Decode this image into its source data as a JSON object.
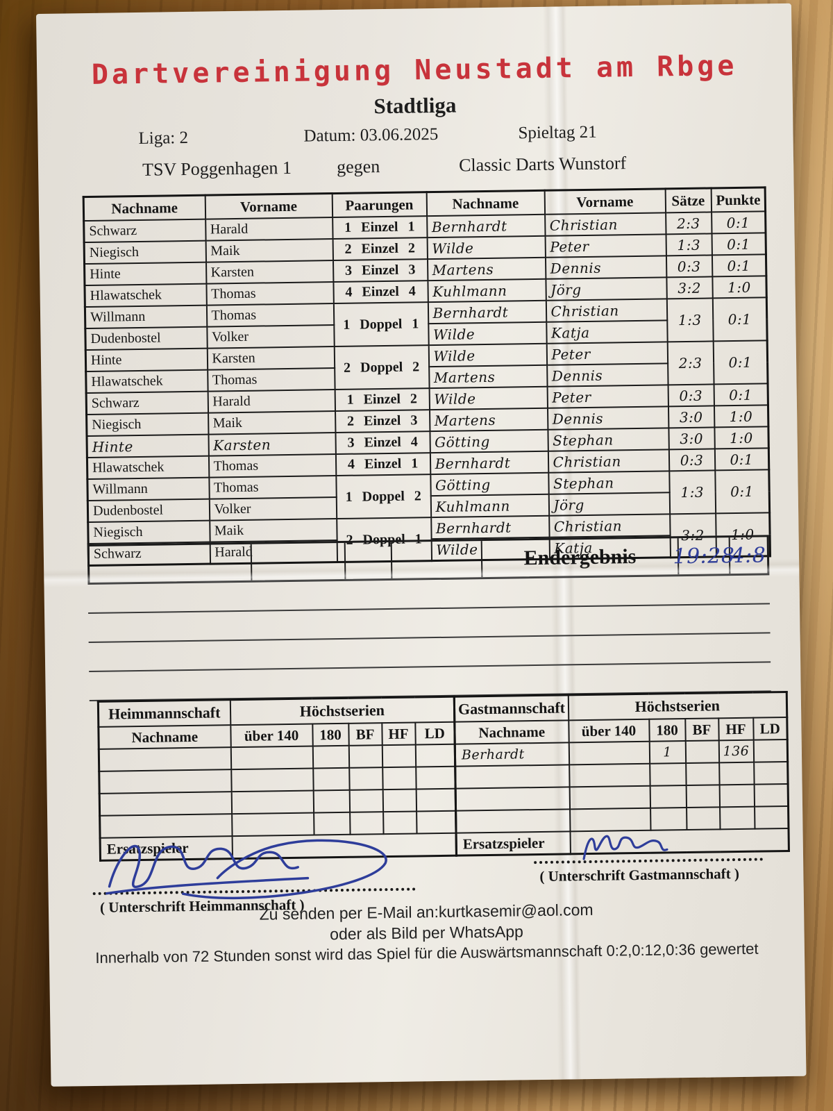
{
  "colors": {
    "title_red": "#c8333b",
    "ink_blue": "#2e3d9a",
    "paper": "#eae6de",
    "wood_brown": "#a87a45"
  },
  "header": {
    "title": "Dartvereinigung Neustadt am Rbge",
    "subtitle": "Stadtliga",
    "liga": "Liga: 2",
    "datum": "Datum: 03.06.2025",
    "spieltag": "Spieltag 21",
    "home_team": "TSV Poggenhagen 1",
    "versus": "gegen",
    "guest_team": "Classic Darts Wunstorf"
  },
  "match": {
    "headers": [
      "Nachname",
      "Vorname",
      "Paarungen",
      "Nachname",
      "Vorname",
      "Sätze",
      "Punkte"
    ],
    "rows": [
      {
        "home_last": "Schwarz",
        "home_first": "Harald",
        "pairing": "1 Einzel 1",
        "guest_last": "Bernhardt",
        "guest_first": "Christian",
        "saetze": "2:3",
        "punkte": "0:1",
        "group": "single",
        "hw_home": false
      },
      {
        "home_last": "Niegisch",
        "home_first": "Maik",
        "pairing": "2 Einzel 2",
        "guest_last": "Wilde",
        "guest_first": "Peter",
        "saetze": "1:3",
        "punkte": "0:1",
        "group": "single",
        "hw_home": false
      },
      {
        "home_last": "Hinte",
        "home_first": "Karsten",
        "pairing": "3 Einzel 3",
        "guest_last": "Martens",
        "guest_first": "Dennis",
        "saetze": "0:3",
        "punkte": "0:1",
        "group": "single",
        "hw_home": false
      },
      {
        "home_last": "Hlawatschek",
        "home_first": "Thomas",
        "pairing": "4 Einzel 4",
        "guest_last": "Kuhlmann",
        "guest_first": "Jörg",
        "saetze": "3:2",
        "punkte": "1:0",
        "group": "single",
        "hw_home": false
      },
      {
        "home_last": "Willmann",
        "home_first": "Thomas",
        "pairing": "1 Doppel 1",
        "guest_last": "Bernhardt",
        "guest_first": "Christian",
        "saetze": "1:3",
        "punkte": "0:1",
        "group": "start2",
        "hw_home": false
      },
      {
        "home_last": "Dudenbostel",
        "home_first": "Volker",
        "pairing": null,
        "guest_last": "Wilde",
        "guest_first": "Katja",
        "saetze": null,
        "punkte": null,
        "group": "cont",
        "hw_home": false
      },
      {
        "home_last": "Hinte",
        "home_first": "Karsten",
        "pairing": "2 Doppel 2",
        "guest_last": "Wilde",
        "guest_first": "Peter",
        "saetze": "2:3",
        "punkte": "0:1",
        "group": "start2",
        "hw_home": false
      },
      {
        "home_last": "Hlawatschek",
        "home_first": "Thomas",
        "pairing": null,
        "guest_last": "Martens",
        "guest_first": "Dennis",
        "saetze": null,
        "punkte": null,
        "group": "cont",
        "hw_home": false
      },
      {
        "home_last": "Schwarz",
        "home_first": "Harald",
        "pairing": "1 Einzel 2",
        "guest_last": "Wilde",
        "guest_first": "Peter",
        "saetze": "0:3",
        "punkte": "0:1",
        "group": "single",
        "hw_home": false
      },
      {
        "home_last": "Niegisch",
        "home_first": "Maik",
        "pairing": "2 Einzel 3",
        "guest_last": "Martens",
        "guest_first": "Dennis",
        "saetze": "3:0",
        "punkte": "1:0",
        "group": "single",
        "hw_home": false
      },
      {
        "home_last": "Hinte",
        "home_first": "Karsten",
        "pairing": "3 Einzel 4",
        "guest_last": "Götting",
        "guest_first": "Stephan",
        "saetze": "3:0",
        "punkte": "1:0",
        "group": "single",
        "hw_home": true
      },
      {
        "home_last": "Hlawatschek",
        "home_first": "Thomas",
        "pairing": "4 Einzel 1",
        "guest_last": "Bernhardt",
        "guest_first": "Christian",
        "saetze": "0:3",
        "punkte": "0:1",
        "group": "single",
        "hw_home": false
      },
      {
        "home_last": "Willmann",
        "home_first": "Thomas",
        "pairing": "1 Doppel 2",
        "guest_last": "Götting",
        "guest_first": "Stephan",
        "saetze": "1:3",
        "punkte": "0:1",
        "group": "start2",
        "hw_home": false
      },
      {
        "home_last": "Dudenbostel",
        "home_first": "Volker",
        "pairing": null,
        "guest_last": "Kuhlmann",
        "guest_first": "Jörg",
        "saetze": null,
        "punkte": null,
        "group": "cont",
        "hw_home": false
      },
      {
        "home_last": "Niegisch",
        "home_first": "Maik",
        "pairing": "2 Doppel 1",
        "guest_last": "Bernhardt",
        "guest_first": "Christian",
        "saetze": "3:2",
        "punkte": "1:0",
        "group": "start2",
        "hw_home": false
      },
      {
        "home_last": "Schwarz",
        "home_first": "Harald",
        "pairing": null,
        "guest_last": "Wilde",
        "guest_first": "Katja",
        "saetze": null,
        "punkte": null,
        "group": "cont",
        "hw_home": false
      }
    ]
  },
  "endergebnis": {
    "label": "Endergebnis",
    "sets": "19:28",
    "points": "4:8"
  },
  "hoechstserien": {
    "home": {
      "team_label": "Heimmannschaft",
      "series_label": "Höchstserien",
      "columns": [
        "Nachname",
        "über 140",
        "180",
        "BF",
        "HF",
        "LD"
      ],
      "ersatz_label": "Ersatzspieler"
    },
    "guest": {
      "team_label": "Gastmannschaft",
      "series_label": "Höchstserien",
      "columns": [
        "Nachname",
        "über 140",
        "180",
        "BF",
        "HF",
        "LD"
      ],
      "row1": {
        "nachname": "Berhardt",
        "ueber140": "",
        "s180": "1",
        "bf": "",
        "hf": "136",
        "ld": ""
      },
      "ersatz_label": "Ersatzspieler"
    }
  },
  "signatures": {
    "home_caption": "( Unterschrift Heimmannschaft )",
    "guest_caption": "( Unterschrift Gastmannschaft )"
  },
  "footer": {
    "email_line": "Zu senden per E-Mail an:kurtkasemir@aol.com",
    "whatsapp_line": "oder als Bild per WhatsApp",
    "deadline_line": "Innerhalb von 72 Stunden  sonst wird das Spiel für die Auswärtsmannschaft  0:2,0:12,0:36 gewertet"
  }
}
